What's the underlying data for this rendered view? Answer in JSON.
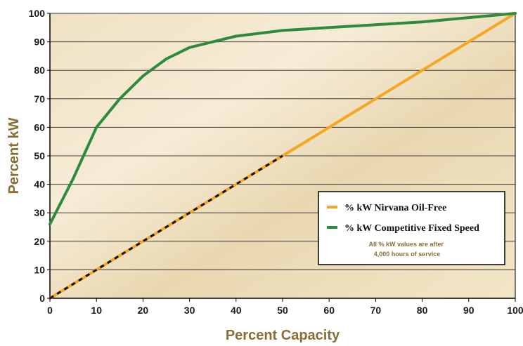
{
  "chart_data": {
    "type": "line",
    "xlabel": "Percent Capacity",
    "ylabel": "Percent kW",
    "xlim": [
      0,
      100
    ],
    "ylim": [
      0,
      100
    ],
    "x_ticks": [
      0,
      10,
      20,
      30,
      40,
      50,
      60,
      70,
      80,
      90,
      100
    ],
    "y_ticks": [
      0,
      10,
      20,
      30,
      40,
      50,
      60,
      70,
      80,
      90,
      100
    ],
    "grid": "horizontal",
    "legend_position": "lower-right",
    "series": [
      {
        "name": "% kW Nirvana Oil-Free",
        "color": "#f5a623",
        "x": [
          0,
          10,
          20,
          30,
          40,
          50,
          60,
          70,
          80,
          90,
          100
        ],
        "y": [
          0,
          10,
          20,
          30,
          40,
          50,
          60,
          70,
          80,
          90,
          100
        ]
      },
      {
        "name": "% kW Competitive Fixed Speed",
        "color": "#2e8b3e",
        "x": [
          0,
          5,
          10,
          15,
          20,
          25,
          30,
          35,
          40,
          50,
          60,
          70,
          80,
          90,
          100
        ],
        "y": [
          26,
          42,
          60,
          70,
          78,
          84,
          88,
          90,
          92,
          94,
          95,
          96,
          97,
          98.5,
          100
        ]
      }
    ],
    "overlay": {
      "style": "dashed",
      "color": "#111111",
      "x": [
        0,
        50
      ],
      "y": [
        0,
        50
      ]
    },
    "note": "All % kW values are after 4,000 hours of service"
  }
}
